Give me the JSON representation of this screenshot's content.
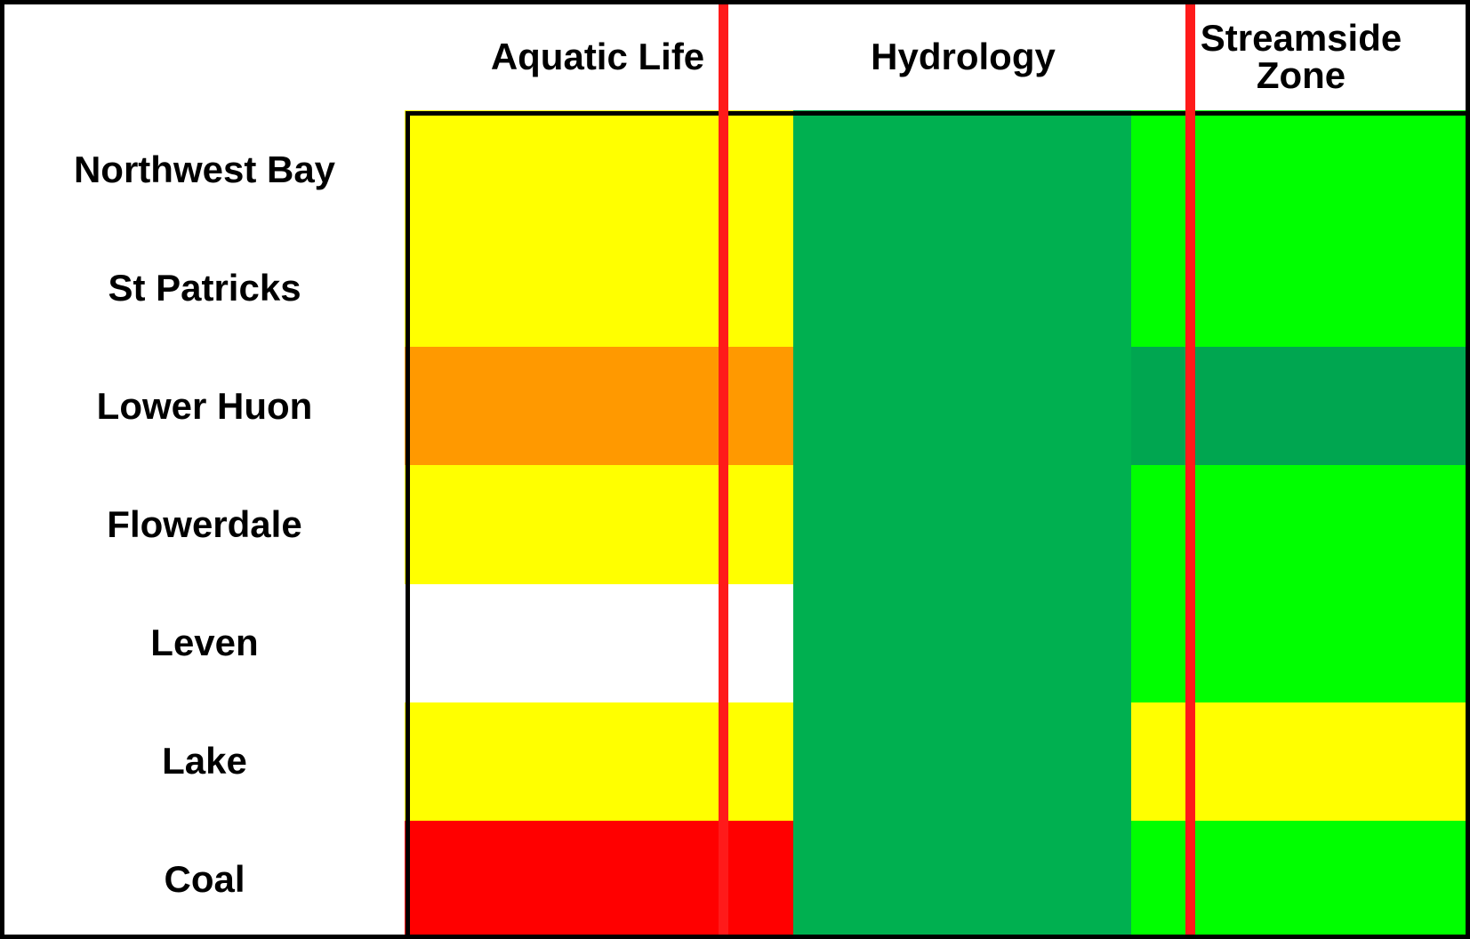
{
  "table": {
    "columns": [
      "Aquatic Life",
      "Hydrology",
      "Streamside\nZone"
    ],
    "rows": [
      {
        "label": "Northwest Bay",
        "colors": [
          "#ffff00",
          "#00b050",
          "#00ff00"
        ]
      },
      {
        "label": "St Patricks",
        "colors": [
          "#ffff00",
          "#00b050",
          "#00ff00"
        ]
      },
      {
        "label": "Lower Huon",
        "colors": [
          "#ff9900",
          "#00b050",
          "#00a650"
        ]
      },
      {
        "label": "Flowerdale",
        "colors": [
          "#ffff00",
          "#00b050",
          "#00ff00"
        ]
      },
      {
        "label": "Leven",
        "colors": [
          "#ffffff",
          "#00b050",
          "#00ff00"
        ]
      },
      {
        "label": "Lake",
        "colors": [
          "#ffff00",
          "#00b050",
          "#ffff00"
        ]
      },
      {
        "label": "Coal",
        "colors": [
          "#ff0000",
          "#00b050",
          "#00ff00"
        ]
      }
    ],
    "divider_color": "#ff1a1a"
  }
}
